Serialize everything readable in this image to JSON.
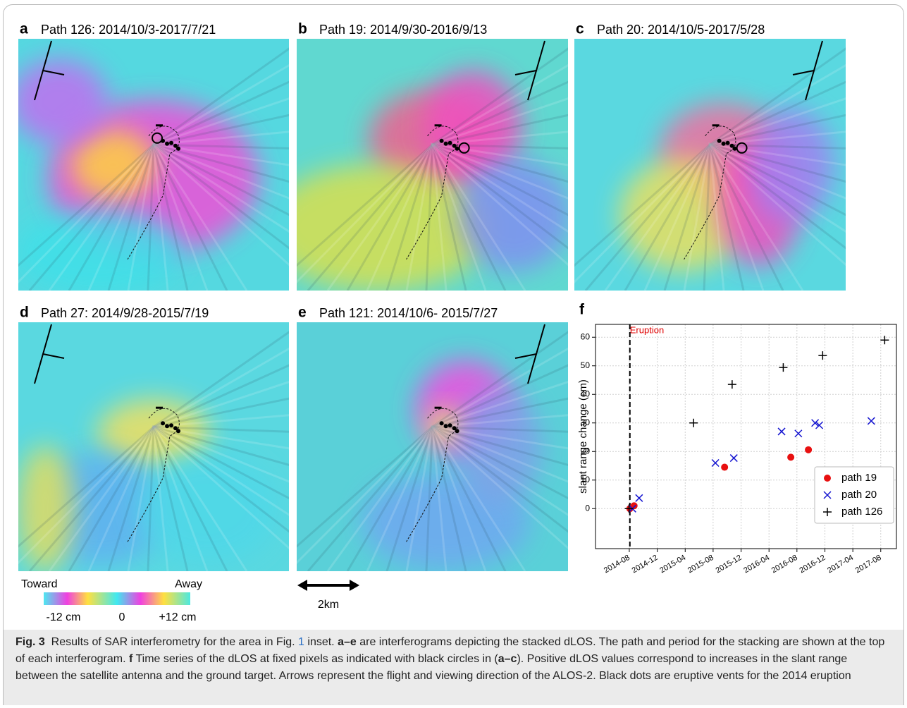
{
  "panels": [
    {
      "letter": "a",
      "title": "Path 126: 2014/10/3-2017/7/21"
    },
    {
      "letter": "b",
      "title": "Path 19: 2014/9/30-2016/9/13"
    },
    {
      "letter": "c",
      "title": "Path 20: 2014/10/5-2017/5/28"
    },
    {
      "letter": "d",
      "title": "Path 27: 2014/9/28-2015/7/19"
    },
    {
      "letter": "e",
      "title": "Path 121: 2014/10/6- 2015/7/27"
    }
  ],
  "colorbar": {
    "left": "Toward",
    "right": "Away",
    "ticks": [
      "-12 cm",
      "0",
      "+12 cm"
    ]
  },
  "scale_bar": "2km",
  "chart_data": {
    "type": "scatter",
    "letter": "f",
    "y_label": "slant range change (cm)",
    "xlim": [
      2014.18,
      2017.77
    ],
    "ylim": [
      -14,
      64.5
    ],
    "xticks": [
      {
        "value": 2014.583,
        "label": "2014-08"
      },
      {
        "value": 2014.917,
        "label": "2014-12"
      },
      {
        "value": 2015.25,
        "label": "2015-04"
      },
      {
        "value": 2015.583,
        "label": "2015-08"
      },
      {
        "value": 2015.917,
        "label": "2015-12"
      },
      {
        "value": 2016.25,
        "label": "2016-04"
      },
      {
        "value": 2016.583,
        "label": "2016-08"
      },
      {
        "value": 2016.917,
        "label": "2016-12"
      },
      {
        "value": 2017.25,
        "label": "2017-04"
      },
      {
        "value": 2017.583,
        "label": "2017-08"
      }
    ],
    "yticks": [
      0,
      10,
      20,
      30,
      40,
      50,
      60
    ],
    "grid": true,
    "legend": "lower right",
    "eruption": {
      "x": 2014.59,
      "label": "Eruption",
      "color": "#e00000"
    },
    "series": [
      {
        "name": "path 19",
        "color": "#e81010",
        "marker": "o",
        "x": [
          2014.59,
          2014.64,
          2015.72,
          2016.51,
          2016.72
        ],
        "values": [
          0,
          1,
          14.5,
          18,
          20.6
        ]
      },
      {
        "name": "path 20",
        "color": "#1414d0",
        "marker": "x",
        "x": [
          2014.62,
          2014.7,
          2015.61,
          2015.83,
          2016.4,
          2016.6,
          2016.8,
          2016.85,
          2017.47
        ],
        "values": [
          0,
          3.7,
          16,
          17.7,
          27,
          26.3,
          30,
          29.2,
          30.7
        ]
      },
      {
        "name": "path 126",
        "color": "#000000",
        "marker": "+",
        "x": [
          2014.58,
          2015.35,
          2015.81,
          2016.42,
          2016.89,
          2017.63
        ],
        "values": [
          0,
          30,
          43.5,
          49.4,
          53.6,
          59
        ]
      }
    ]
  },
  "caption": [
    {
      "text": "Fig. 3",
      "bold": true
    },
    {
      "text": "  Results of SAR interferometry for the area in Fig. "
    },
    {
      "text": "1",
      "link": true
    },
    {
      "text": " inset. "
    },
    {
      "text": "a–e",
      "bold": true
    },
    {
      "text": " are interferograms depicting the stacked dLOS. The path and period for the stacking are shown at the top of each interferogram. "
    },
    {
      "text": "f",
      "bold": true
    },
    {
      "text": " Time series of the dLOS at fixed pixels as indicated with black circles in ("
    },
    {
      "text": "a–c",
      "bold": true
    },
    {
      "text": "). Positive dLOS values correspond to increases in the slant range between the satellite antenna and the ground target. Arrows represent the flight and viewing direction of the ALOS-2. Black dots are eruptive vents for the 2014 eruption"
    }
  ]
}
